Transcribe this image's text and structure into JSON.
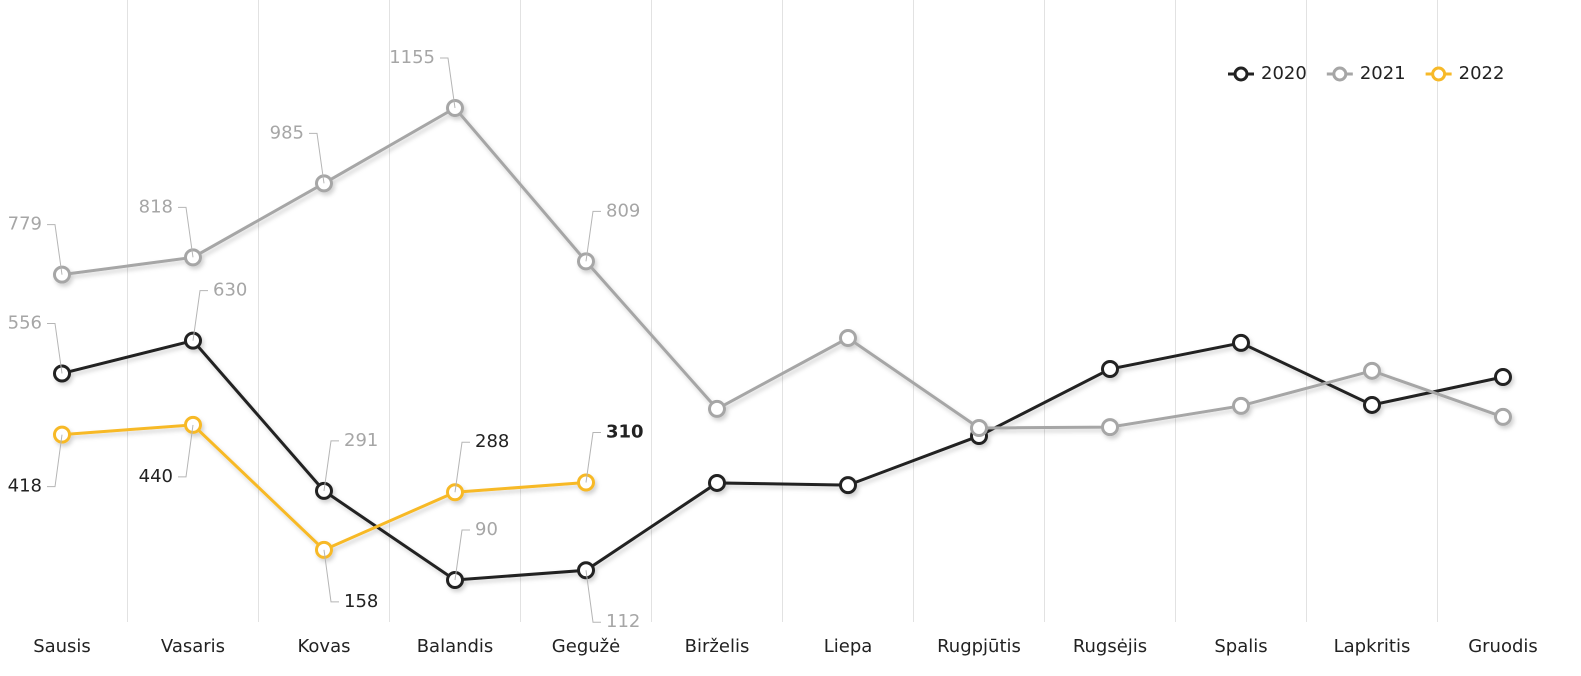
{
  "chart_data": {
    "type": "line",
    "categories": [
      "Sausis",
      "Vasaris",
      "Kovas",
      "Balandis",
      "Gegužė",
      "Birželis",
      "Liepa",
      "Rugpjūtis",
      "Rugsėjis",
      "Spalis",
      "Lapkritis",
      "Gruodis"
    ],
    "series": [
      {
        "name": "2020",
        "color": "#222222",
        "label_color": "#a6a6a6",
        "values": [
          556,
          630,
          291,
          90,
          112,
          309,
          304,
          415,
          566,
          625,
          485,
          548
        ]
      },
      {
        "name": "2021",
        "color": "#a6a6a6",
        "label_color": "#a6a6a6",
        "values": [
          779,
          818,
          985,
          1155,
          809,
          476,
          636,
          433,
          435,
          483,
          562,
          458
        ]
      },
      {
        "name": "2022",
        "color": "#f7b928",
        "label_color": "#222222",
        "values": [
          418,
          440,
          158,
          288,
          310,
          null,
          null,
          null,
          null,
          null,
          null,
          null
        ]
      }
    ],
    "legend": "top-right",
    "grid": true
  }
}
